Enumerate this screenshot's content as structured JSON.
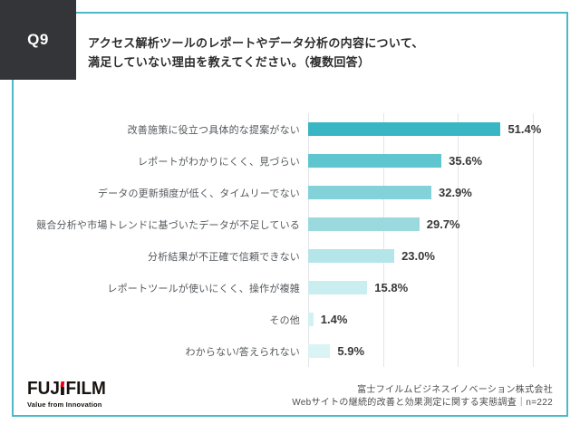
{
  "header": {
    "question_number": "Q9",
    "question_line1": "アクセス解析ツールのレポートやデータ分析の内容について、",
    "question_line2": "満足していない理由を教えてください。（複数回答）"
  },
  "chart_data": {
    "type": "bar",
    "orientation": "horizontal",
    "title": "",
    "xlabel": "",
    "ylabel": "",
    "categories": [
      "改善施策に役立つ具体的な提案がない",
      "レポートがわかりにくく、見づらい",
      "データの更新頻度が低く、タイムリーでない",
      "競合分析や市場トレンドに基づいたデータが不足している",
      "分析結果が不正確で信頼できない",
      "レポートツールが使いにくく、操作が複雑",
      "その他",
      "わからない/答えられない"
    ],
    "values": [
      51.4,
      35.6,
      32.9,
      29.7,
      23.0,
      15.8,
      1.4,
      5.9
    ],
    "value_suffix": "%",
    "xlim": [
      0,
      60
    ],
    "gridline_values": [
      0,
      20,
      40,
      60
    ],
    "grid": true,
    "legend": false,
    "bar_colors": [
      "#39b6c4",
      "#5fc6cf",
      "#83d1d9",
      "#9adade",
      "#b4e5e9",
      "#caedf0",
      "#d3f1f3",
      "#daf3f5"
    ]
  },
  "footer": {
    "logo_part1": "FUJ",
    "logo_part2": "FILM",
    "logo_tagline": "Value from Innovation",
    "source_line1": "富士フイルムビジネスイノベーション株式会社",
    "source_line2": "Webサイトの継続的改善と効果測定に関する実態調査｜n=222"
  },
  "colors": {
    "frame_border": "#4cbac6",
    "question_box_bg": "#333538",
    "gridline": "#e2e5e7",
    "logo_red": "#e60012"
  }
}
